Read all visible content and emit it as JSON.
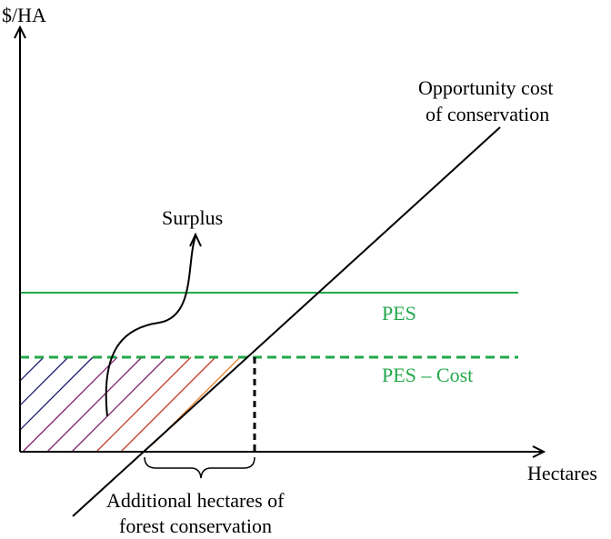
{
  "axes": {
    "y_label": "$/HA",
    "x_label": "Hectares"
  },
  "labels": {
    "opportunity_cost_line1": "Opportunity cost",
    "opportunity_cost_line2": "of conservation",
    "surplus": "Surplus",
    "pes": "PES",
    "pes_minus_cost": "PES – Cost",
    "additional_line1": "Additional hectares of",
    "additional_line2": "forest conservation"
  },
  "colors": {
    "axis": "#000000",
    "pes_line": "#22a84a",
    "hatch_gradient": [
      "#1a1a6e",
      "#7a1f6a",
      "#c0392b",
      "#e67e22",
      "#f1b84a"
    ]
  }
}
